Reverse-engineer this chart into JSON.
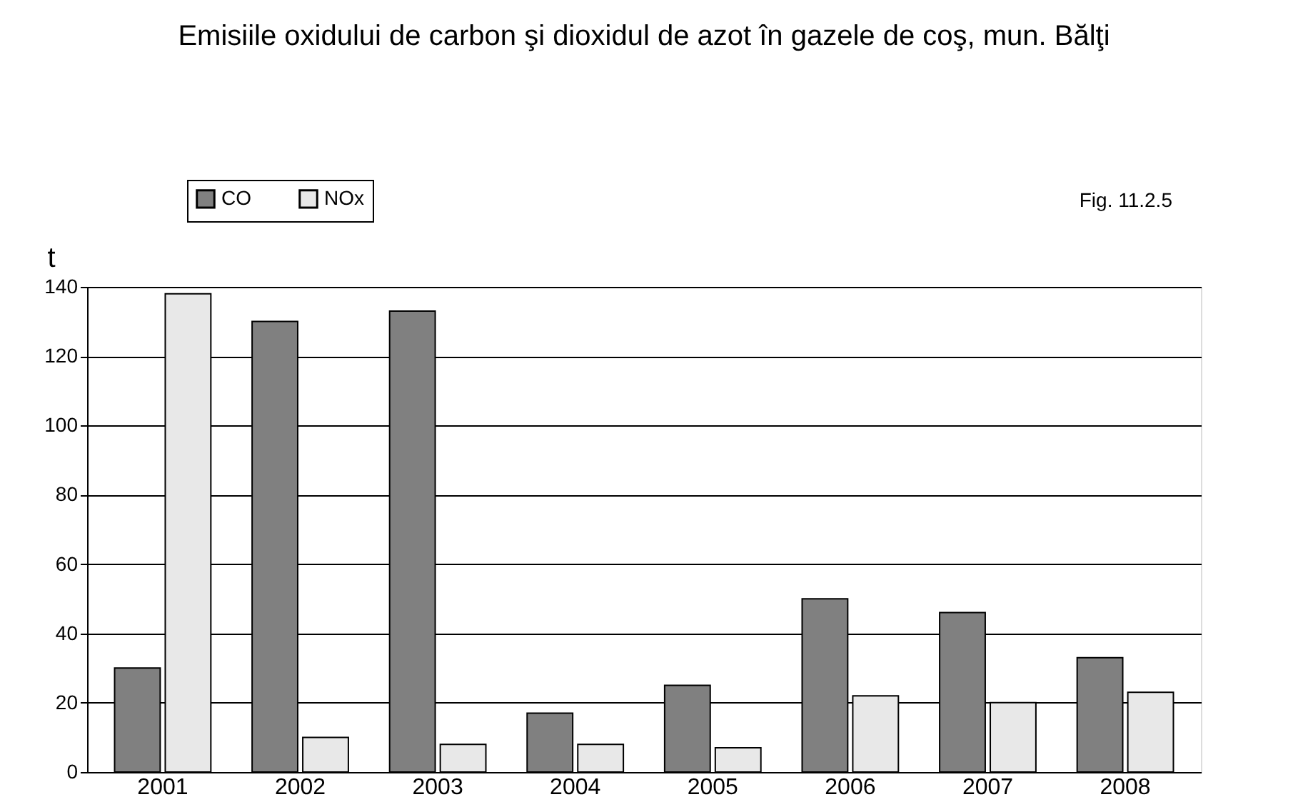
{
  "chart_data": {
    "type": "bar",
    "title": "Emisiile oxidului de carbon şi dioxidul de azot în gazele de coş, mun. Bălţi",
    "ylabel": "t",
    "annotations": [
      "Fig. 11.2.5"
    ],
    "categories": [
      "2001",
      "2002",
      "2003",
      "2004",
      "2005",
      "2006",
      "2007",
      "2008"
    ],
    "series": [
      {
        "name": "CO",
        "color": "#808080",
        "values": [
          30,
          130,
          133,
          17,
          25,
          50,
          46,
          33
        ]
      },
      {
        "name": "NOx",
        "color": "#e8e8e8",
        "values": [
          138,
          10,
          8,
          8,
          7,
          22,
          20,
          23
        ]
      }
    ],
    "ylim": [
      0,
      140
    ],
    "yticks": [
      0,
      20,
      40,
      60,
      80,
      100,
      120,
      140
    ],
    "grid": "y",
    "legend": "top left"
  }
}
